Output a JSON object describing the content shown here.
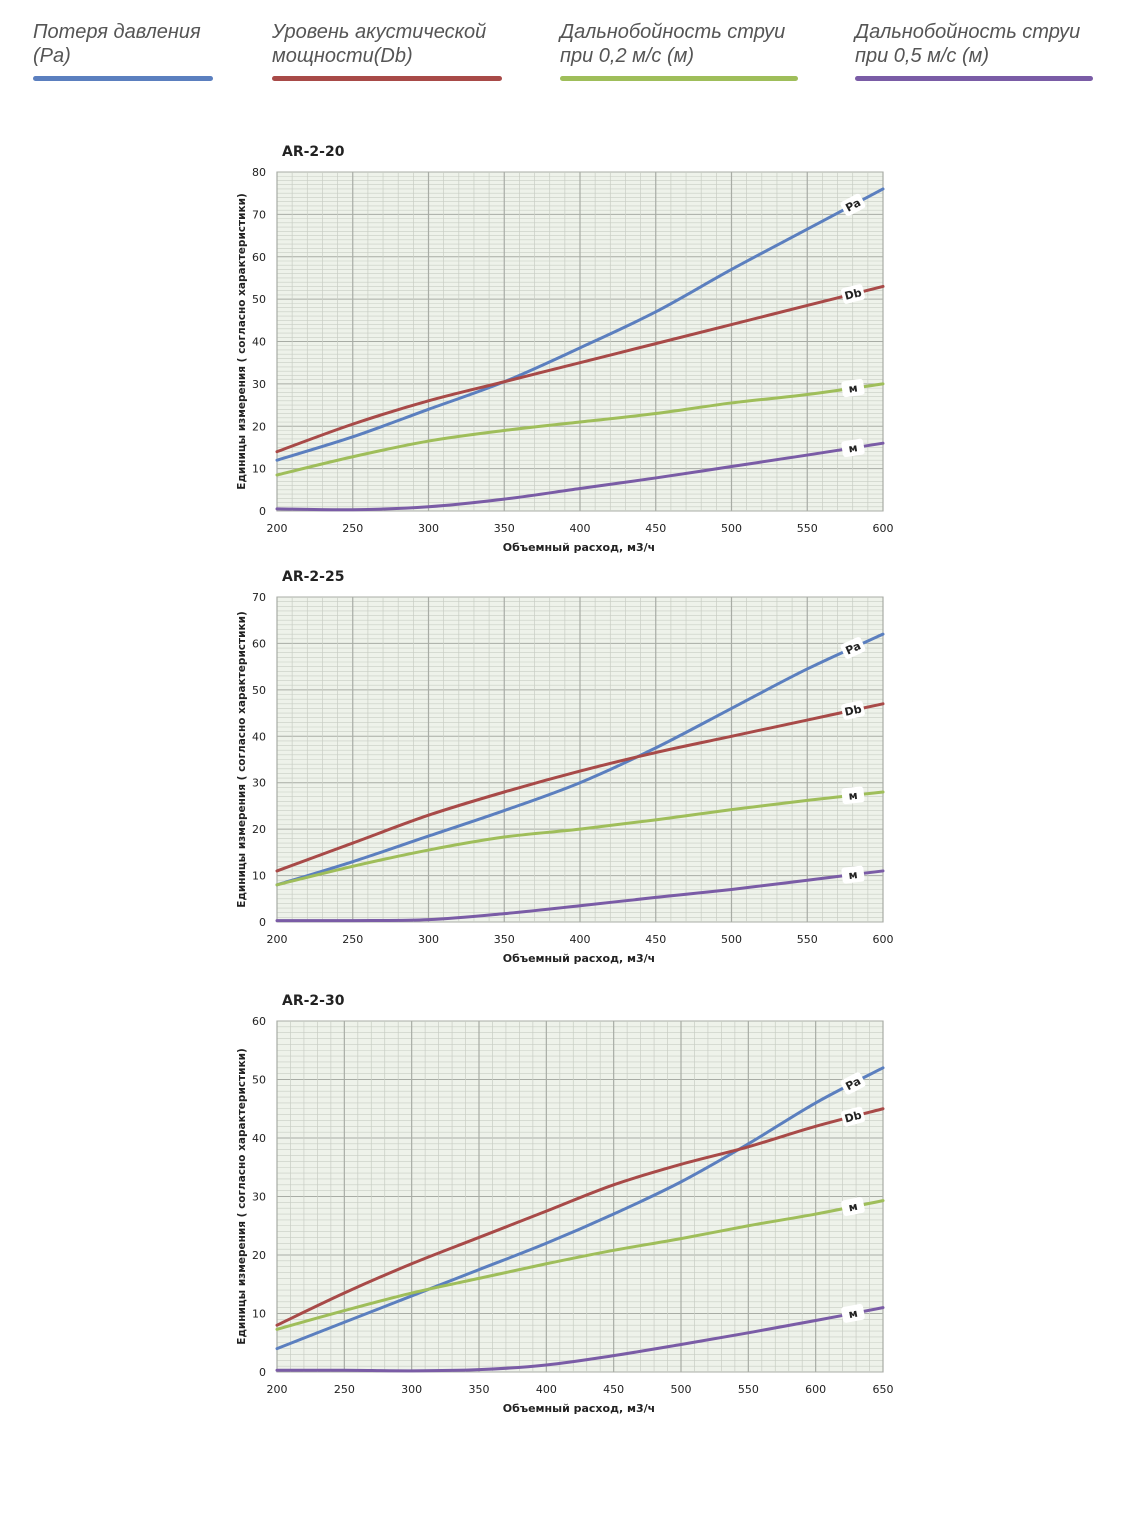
{
  "legend": [
    {
      "label": "Потеря давления\n(Pa)",
      "color": "#5b7fbf"
    },
    {
      "label": "Уровень акустической\nмощности(Db)",
      "color": "#a84a48"
    },
    {
      "label": "Дальнобойность струи\nпри 0,2 м/с (м)",
      "color": "#9fbe5a"
    },
    {
      "label": "Дальнобойность струи\nпри 0,5 м/с (м)",
      "color": "#7a5ca6"
    }
  ],
  "chart_data": [
    {
      "type": "line",
      "title": "AR-2-20",
      "xlabel": "Объемный расход, м3/ч",
      "ylabel": "Единицы измерения ( согласно характеристики)",
      "xlim": [
        200,
        600
      ],
      "ylim": [
        0,
        80
      ],
      "xticks": [
        200,
        250,
        300,
        350,
        400,
        450,
        500,
        550,
        600
      ],
      "yticks": [
        0,
        10,
        20,
        30,
        40,
        50,
        60,
        70,
        80
      ],
      "grid": true,
      "x": [
        200,
        250,
        300,
        350,
        400,
        450,
        500,
        550,
        600
      ],
      "series": [
        {
          "name": "Pa",
          "label": "Pa",
          "color": "#5b7fbf",
          "values": [
            12,
            17.5,
            24,
            30.5,
            38.5,
            47,
            57,
            66.5,
            76
          ]
        },
        {
          "name": "Db",
          "label": "Db",
          "color": "#a84a48",
          "values": [
            14,
            20.5,
            26,
            30.5,
            35,
            39.5,
            44,
            48.5,
            53
          ]
        },
        {
          "name": "0.2 м/с",
          "label": "м",
          "color": "#9fbe5a",
          "values": [
            8.5,
            12.8,
            16.5,
            19,
            21,
            23,
            25.5,
            27.5,
            30
          ]
        },
        {
          "name": "0.5 м/с",
          "label": "м",
          "color": "#7a5ca6",
          "values": [
            0.5,
            0.3,
            1,
            2.8,
            5.3,
            7.8,
            10.5,
            13.2,
            16
          ]
        }
      ]
    },
    {
      "type": "line",
      "title": "AR-2-25",
      "xlabel": "Объемный расход, м3/ч",
      "ylabel": "Единицы измерения ( согласно характеристики)",
      "xlim": [
        200,
        600
      ],
      "ylim": [
        0,
        70
      ],
      "xticks": [
        200,
        250,
        300,
        350,
        400,
        450,
        500,
        550,
        600
      ],
      "yticks": [
        0,
        10,
        20,
        30,
        40,
        50,
        60,
        70
      ],
      "grid": true,
      "x": [
        200,
        250,
        300,
        350,
        400,
        450,
        500,
        550,
        600
      ],
      "series": [
        {
          "name": "Pa",
          "label": "Pa",
          "color": "#5b7fbf",
          "values": [
            8,
            13,
            18.5,
            24,
            30,
            37.5,
            46,
            54.5,
            62
          ]
        },
        {
          "name": "Db",
          "label": "Db",
          "color": "#a84a48",
          "values": [
            11,
            17,
            23,
            28,
            32.5,
            36.5,
            40,
            43.5,
            47
          ]
        },
        {
          "name": "0.2 м/с",
          "label": "м",
          "color": "#9fbe5a",
          "values": [
            8,
            12,
            15.5,
            18.3,
            20,
            22,
            24.2,
            26.2,
            28
          ]
        },
        {
          "name": "0.5 м/с",
          "label": "м",
          "color": "#7a5ca6",
          "values": [
            0.3,
            0.3,
            0.5,
            1.8,
            3.5,
            5.3,
            7,
            9,
            11
          ]
        }
      ]
    },
    {
      "type": "line",
      "title": "AR-2-30",
      "xlabel": "Объемный расход, м3/ч",
      "ylabel": "Единицы измерения ( согласно характеристики)",
      "xlim": [
        200,
        650
      ],
      "ylim": [
        0,
        60
      ],
      "xticks": [
        200,
        250,
        300,
        350,
        400,
        450,
        500,
        550,
        600,
        650
      ],
      "yticks": [
        0,
        10,
        20,
        30,
        40,
        50,
        60
      ],
      "grid": true,
      "x": [
        200,
        250,
        300,
        350,
        400,
        450,
        500,
        550,
        600,
        650
      ],
      "series": [
        {
          "name": "Pa",
          "label": "Pa",
          "color": "#5b7fbf",
          "values": [
            4,
            8.5,
            13,
            17.5,
            22,
            27,
            32.5,
            39,
            46,
            52
          ]
        },
        {
          "name": "Db",
          "label": "Db",
          "color": "#a84a48",
          "values": [
            8,
            13.5,
            18.5,
            23,
            27.5,
            32,
            35.5,
            38.5,
            42,
            45
          ]
        },
        {
          "name": "0.2 м/с",
          "label": "м",
          "color": "#9fbe5a",
          "values": [
            7.3,
            10.5,
            13.5,
            16,
            18.5,
            20.8,
            22.8,
            25,
            27,
            29.3
          ]
        },
        {
          "name": "0.5 м/с",
          "label": "м",
          "color": "#7a5ca6",
          "values": [
            0.3,
            0.3,
            0.2,
            0.4,
            1.2,
            2.8,
            4.7,
            6.7,
            8.8,
            11
          ]
        }
      ]
    }
  ]
}
